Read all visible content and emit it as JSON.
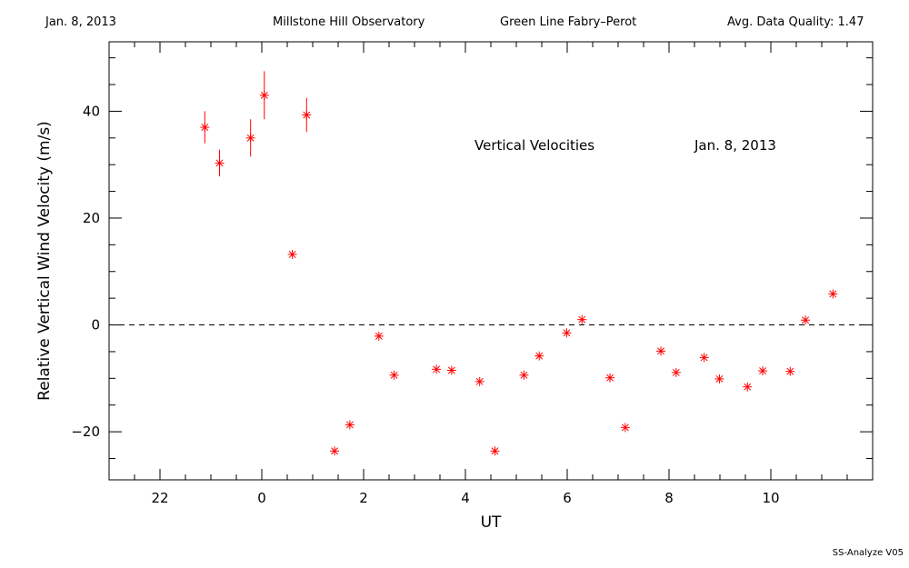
{
  "header": {
    "date": "Jan. 8, 2013",
    "observatory": "Millstone Hill Observatory",
    "instrument": "Green Line Fabry–Perot",
    "quality": "Avg. Data Quality: 1.47"
  },
  "footer": {
    "software": "SS-Analyze V05"
  },
  "colors": {
    "points": "#ff0000",
    "axes": "#000000",
    "background": "#ffffff"
  },
  "chart_data": {
    "type": "scatter",
    "title": "Vertical Velocities",
    "date_label": "Jan. 8, 2013",
    "xlabel": "UT",
    "ylabel": "Relative Vertical Wind Velocity (m/s)",
    "x_tick_labels": [
      "22",
      "0",
      "2",
      "4",
      "6",
      "8",
      "10"
    ],
    "y_tick_labels": [
      "−20",
      "0",
      "20",
      "40"
    ],
    "x_tick_values": [
      22,
      0,
      2,
      4,
      6,
      8,
      10
    ],
    "y_tick_values": [
      -20,
      0,
      20,
      40
    ],
    "xlim": [
      21,
      36
    ],
    "ylim": [
      -29,
      53
    ],
    "zero_line": true,
    "series": [
      {
        "x": [
          22.88,
          23.17,
          23.78,
          24.05,
          24.6,
          24.88,
          25.43,
          25.73,
          26.3,
          26.6,
          27.43,
          27.73,
          28.28,
          28.58,
          29.15,
          29.45,
          29.99,
          30.29,
          30.84,
          31.14,
          31.84,
          32.14,
          32.69,
          32.99,
          33.54,
          33.84,
          34.38,
          34.68,
          35.22
        ],
        "y": [
          37,
          30.3,
          35,
          43,
          13.2,
          39.3,
          -23.6,
          -18.7,
          -2.1,
          -9.4,
          -8.3,
          -8.5,
          -10.6,
          -23.6,
          -9.4,
          -5.8,
          -1.5,
          1.0,
          -9.9,
          -19.2,
          -4.9,
          -8.9,
          -6.1,
          -10.1,
          -11.6,
          -8.6,
          -8.7,
          0.9,
          5.8
        ],
        "err": [
          3,
          2.5,
          3.5,
          4.5,
          0,
          3.2,
          0,
          0,
          0,
          0,
          0,
          0,
          0,
          0,
          0,
          0,
          0,
          0,
          0,
          0,
          0,
          0,
          0,
          0,
          0,
          0,
          0,
          0,
          0
        ]
      }
    ]
  }
}
